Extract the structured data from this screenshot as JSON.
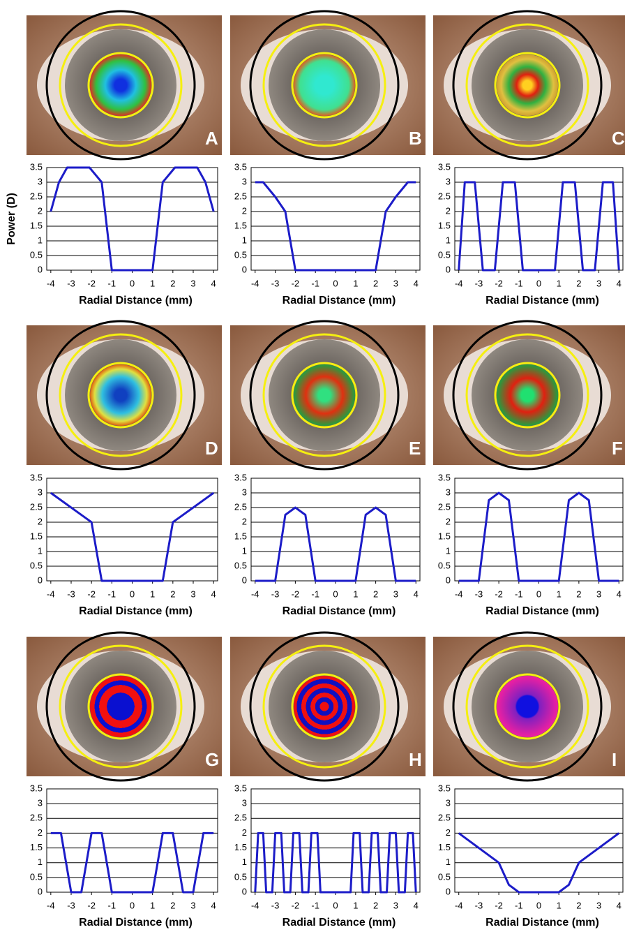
{
  "chart_data": [
    {
      "type": "line",
      "label": "A",
      "xlabel": "Radial Distance (mm)",
      "ylabel": "Power (D)",
      "color": "#1c1cc8",
      "grid": true,
      "xlim": [
        -4.2,
        4.2
      ],
      "ylim": [
        0,
        3.5
      ],
      "xticks": [
        -4,
        -3,
        -2,
        -1,
        0,
        1,
        2,
        3,
        4
      ],
      "yticks": [
        0,
        0.5,
        1,
        1.5,
        2,
        2.5,
        3,
        3.5
      ],
      "x": [
        -4,
        -3.6,
        -3.2,
        -2.1,
        -1.5,
        -1,
        1,
        1.5,
        2.1,
        3.2,
        3.6,
        4
      ],
      "values": [
        2,
        3,
        3.5,
        3.5,
        3,
        0,
        0,
        3,
        3.5,
        3.5,
        3,
        2
      ]
    },
    {
      "type": "line",
      "label": "B",
      "xlabel": "Radial Distance (mm)",
      "color": "#1c1cc8",
      "grid": true,
      "xlim": [
        -4.2,
        4.2
      ],
      "ylim": [
        0,
        3.5
      ],
      "xticks": [
        -4,
        -3,
        -2,
        -1,
        0,
        1,
        2,
        3,
        4
      ],
      "yticks": [
        0,
        0.5,
        1,
        1.5,
        2,
        2.5,
        3,
        3.5
      ],
      "x": [
        -4,
        -3.6,
        -3,
        -2.5,
        -2,
        2,
        2.5,
        3,
        3.6,
        4
      ],
      "values": [
        3,
        3,
        2.5,
        2,
        0,
        0,
        2,
        2.5,
        3,
        3
      ]
    },
    {
      "type": "line",
      "label": "C",
      "xlabel": "Radial Distance (mm)",
      "color": "#1c1cc8",
      "grid": true,
      "xlim": [
        -4.2,
        4.2
      ],
      "ylim": [
        0,
        3.5
      ],
      "xticks": [
        -4,
        -3,
        -2,
        -1,
        0,
        1,
        2,
        3,
        4
      ],
      "yticks": [
        0,
        0.5,
        1,
        1.5,
        2,
        2.5,
        3,
        3.5
      ],
      "x": [
        -4,
        -3.7,
        -3.2,
        -2.8,
        -2.2,
        -1.8,
        -1.2,
        -0.8,
        0.8,
        1.2,
        1.8,
        2.2,
        2.8,
        3.2,
        3.7,
        4
      ],
      "values": [
        0,
        3,
        3,
        0,
        0,
        3,
        3,
        0,
        0,
        3,
        3,
        0,
        0,
        3,
        3,
        0
      ]
    },
    {
      "type": "line",
      "label": "D",
      "xlabel": "Radial Distance (mm)",
      "color": "#1c1cc8",
      "grid": true,
      "xlim": [
        -4.2,
        4.2
      ],
      "ylim": [
        0,
        3.5
      ],
      "xticks": [
        -4,
        -3,
        -2,
        -1,
        0,
        1,
        2,
        3,
        4
      ],
      "yticks": [
        0,
        0.5,
        1,
        1.5,
        2,
        2.5,
        3,
        3.5
      ],
      "x": [
        -4,
        -2,
        -1.5,
        1.5,
        2,
        4
      ],
      "values": [
        3,
        2,
        0,
        0,
        2,
        3
      ]
    },
    {
      "type": "line",
      "label": "E",
      "xlabel": "Radial Distance (mm)",
      "color": "#1c1cc8",
      "grid": true,
      "xlim": [
        -4.2,
        4.2
      ],
      "ylim": [
        0,
        3.5
      ],
      "xticks": [
        -4,
        -3,
        -2,
        -1,
        0,
        1,
        2,
        3,
        4
      ],
      "yticks": [
        0,
        0.5,
        1,
        1.5,
        2,
        2.5,
        3,
        3.5
      ],
      "x": [
        -4,
        -3,
        -2.5,
        -2,
        -1.5,
        -1,
        1,
        1.5,
        2,
        2.5,
        3,
        4
      ],
      "values": [
        0,
        0,
        2.25,
        2.5,
        2.25,
        0,
        0,
        2.25,
        2.5,
        2.25,
        0,
        0
      ]
    },
    {
      "type": "line",
      "label": "F",
      "xlabel": "Radial Distance (mm)",
      "color": "#1c1cc8",
      "grid": true,
      "xlim": [
        -4.2,
        4.2
      ],
      "ylim": [
        0,
        3.5
      ],
      "xticks": [
        -4,
        -3,
        -2,
        -1,
        0,
        1,
        2,
        3,
        4
      ],
      "yticks": [
        0,
        0.5,
        1,
        1.5,
        2,
        2.5,
        3,
        3.5
      ],
      "x": [
        -4,
        -3,
        -2.5,
        -2,
        -1.5,
        -1,
        1,
        1.5,
        2,
        2.5,
        3,
        4
      ],
      "values": [
        0,
        0,
        2.75,
        3,
        2.75,
        0,
        0,
        2.75,
        3,
        2.75,
        0,
        0
      ]
    },
    {
      "type": "line",
      "label": "G",
      "xlabel": "Radial Distance (mm)",
      "color": "#1c1cc8",
      "grid": true,
      "xlim": [
        -4.2,
        4.2
      ],
      "ylim": [
        0,
        3.5
      ],
      "xticks": [
        -4,
        -3,
        -2,
        -1,
        0,
        1,
        2,
        3,
        4
      ],
      "yticks": [
        0,
        0.5,
        1,
        1.5,
        2,
        2.5,
        3,
        3.5
      ],
      "x": [
        -4,
        -3.5,
        -3,
        -2.5,
        -2,
        -1.5,
        -1,
        1,
        1.5,
        2,
        2.5,
        3,
        3.5,
        4
      ],
      "values": [
        2,
        2,
        0,
        0,
        2,
        2,
        0,
        0,
        2,
        2,
        0,
        0,
        2,
        2
      ]
    },
    {
      "type": "line",
      "label": "H",
      "xlabel": "Radial Distance (mm)",
      "color": "#1c1cc8",
      "grid": true,
      "xlim": [
        -4.2,
        4.2
      ],
      "ylim": [
        0,
        3.5
      ],
      "xticks": [
        -4,
        -3,
        -2,
        -1,
        0,
        1,
        2,
        3,
        4
      ],
      "yticks": [
        0,
        0.5,
        1,
        1.5,
        2,
        2.5,
        3,
        3.5
      ],
      "x": [
        -4,
        -3.85,
        -3.6,
        -3.45,
        -3.15,
        -3,
        -2.7,
        -2.55,
        -2.25,
        -2.1,
        -1.8,
        -1.65,
        -1.35,
        -1.2,
        -0.9,
        -0.75,
        0.75,
        0.9,
        1.2,
        1.35,
        1.65,
        1.8,
        2.1,
        2.25,
        2.55,
        2.7,
        3,
        3.15,
        3.45,
        3.6,
        3.85,
        4
      ],
      "values": [
        0,
        2,
        2,
        0,
        0,
        2,
        2,
        0,
        0,
        2,
        2,
        0,
        0,
        2,
        2,
        0,
        0,
        2,
        2,
        0,
        0,
        2,
        2,
        0,
        0,
        2,
        2,
        0,
        0,
        2,
        2,
        0
      ]
    },
    {
      "type": "line",
      "label": "I",
      "xlabel": "Radial Distance (mm)",
      "color": "#1c1cc8",
      "grid": true,
      "xlim": [
        -4.2,
        4.2
      ],
      "ylim": [
        0,
        3.5
      ],
      "xticks": [
        -4,
        -3,
        -2,
        -1,
        0,
        1,
        2,
        3,
        4
      ],
      "yticks": [
        0,
        0.5,
        1,
        1.5,
        2,
        2.5,
        3,
        3.5
      ],
      "x": [
        -4,
        -2,
        -1.5,
        -1,
        1,
        1.5,
        2,
        4
      ],
      "values": [
        2,
        1,
        0.25,
        0,
        0,
        0.25,
        1,
        2
      ]
    }
  ]
}
